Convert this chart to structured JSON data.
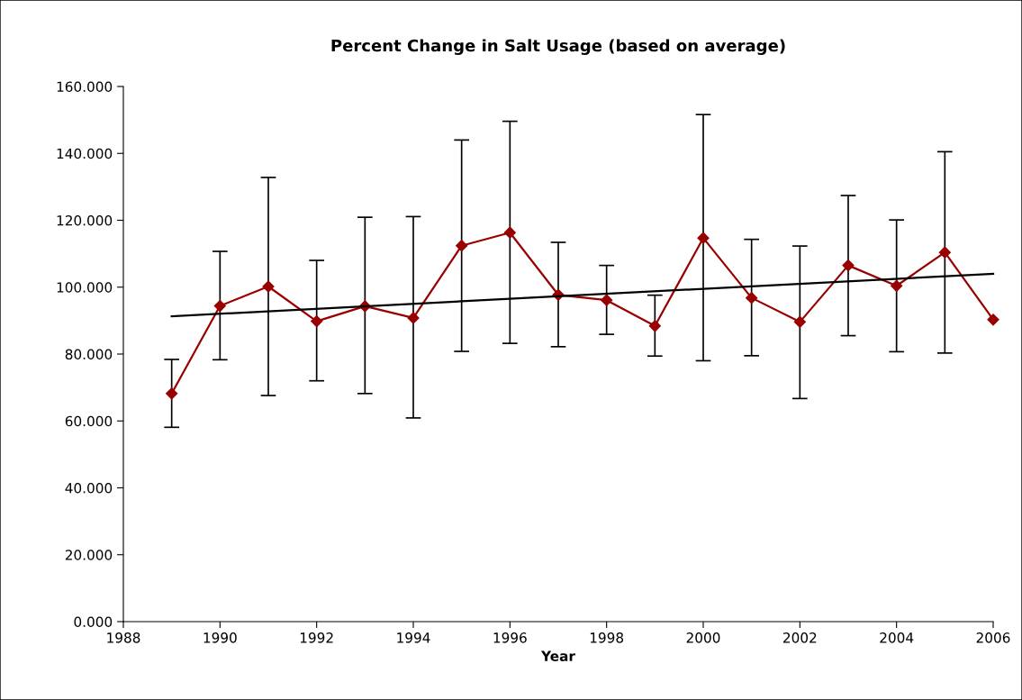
{
  "chart_data": {
    "type": "line",
    "title": "Percent Change in Salt Usage (based on average)",
    "xlabel": "Year",
    "xlim": [
      1988,
      2006
    ],
    "xticks": [
      1988,
      1990,
      1992,
      1994,
      1996,
      1998,
      2000,
      2002,
      2004,
      2006
    ],
    "ylim": [
      0,
      160
    ],
    "yticks": [
      {
        "value": 0,
        "label": "0.000"
      },
      {
        "value": 20,
        "label": "20.000"
      },
      {
        "value": 40,
        "label": "40.000"
      },
      {
        "value": 60,
        "label": "60.000"
      },
      {
        "value": 80,
        "label": "80.000"
      },
      {
        "value": 100,
        "label": "100.000"
      },
      {
        "value": 120,
        "label": "120.000"
      },
      {
        "value": 140,
        "label": "140.000"
      },
      {
        "value": 160,
        "label": "160.000"
      }
    ],
    "grid": false,
    "legend": false,
    "series": [
      {
        "color": "#990000",
        "marker": "diamond",
        "line_style": "solid",
        "x": [
          1989,
          1990,
          1991,
          1992,
          1993,
          1994,
          1995,
          1996,
          1997,
          1998,
          1999,
          2000,
          2001,
          2002,
          2003,
          2004,
          2005,
          2006
        ],
        "values": [
          68.2,
          94.4,
          100.2,
          89.8,
          94.3,
          90.8,
          112.4,
          116.3,
          97.7,
          96.1,
          88.4,
          114.7,
          96.8,
          89.6,
          106.5,
          100.4,
          110.4,
          90.3
        ],
        "errors": [
          [
            58.1,
            78.4
          ],
          [
            78.3,
            110.7
          ],
          [
            67.6,
            132.8
          ],
          [
            72.0,
            108.0
          ],
          [
            68.2,
            120.9
          ],
          [
            60.9,
            121.1
          ],
          [
            80.8,
            144.0
          ],
          [
            83.2,
            149.6
          ],
          [
            82.2,
            113.4
          ],
          [
            85.9,
            106.5
          ],
          [
            79.4,
            97.6
          ],
          [
            78.0,
            151.6
          ],
          [
            79.5,
            114.3
          ],
          [
            66.7,
            112.3
          ],
          [
            85.5,
            127.4
          ],
          [
            80.7,
            120.1
          ],
          [
            80.3,
            140.5
          ],
          null
        ]
      },
      {
        "color": "#000000",
        "marker": "none",
        "line_style": "solid",
        "x": [
          1989,
          2006
        ],
        "values": [
          91.3,
          104.0
        ]
      }
    ]
  }
}
